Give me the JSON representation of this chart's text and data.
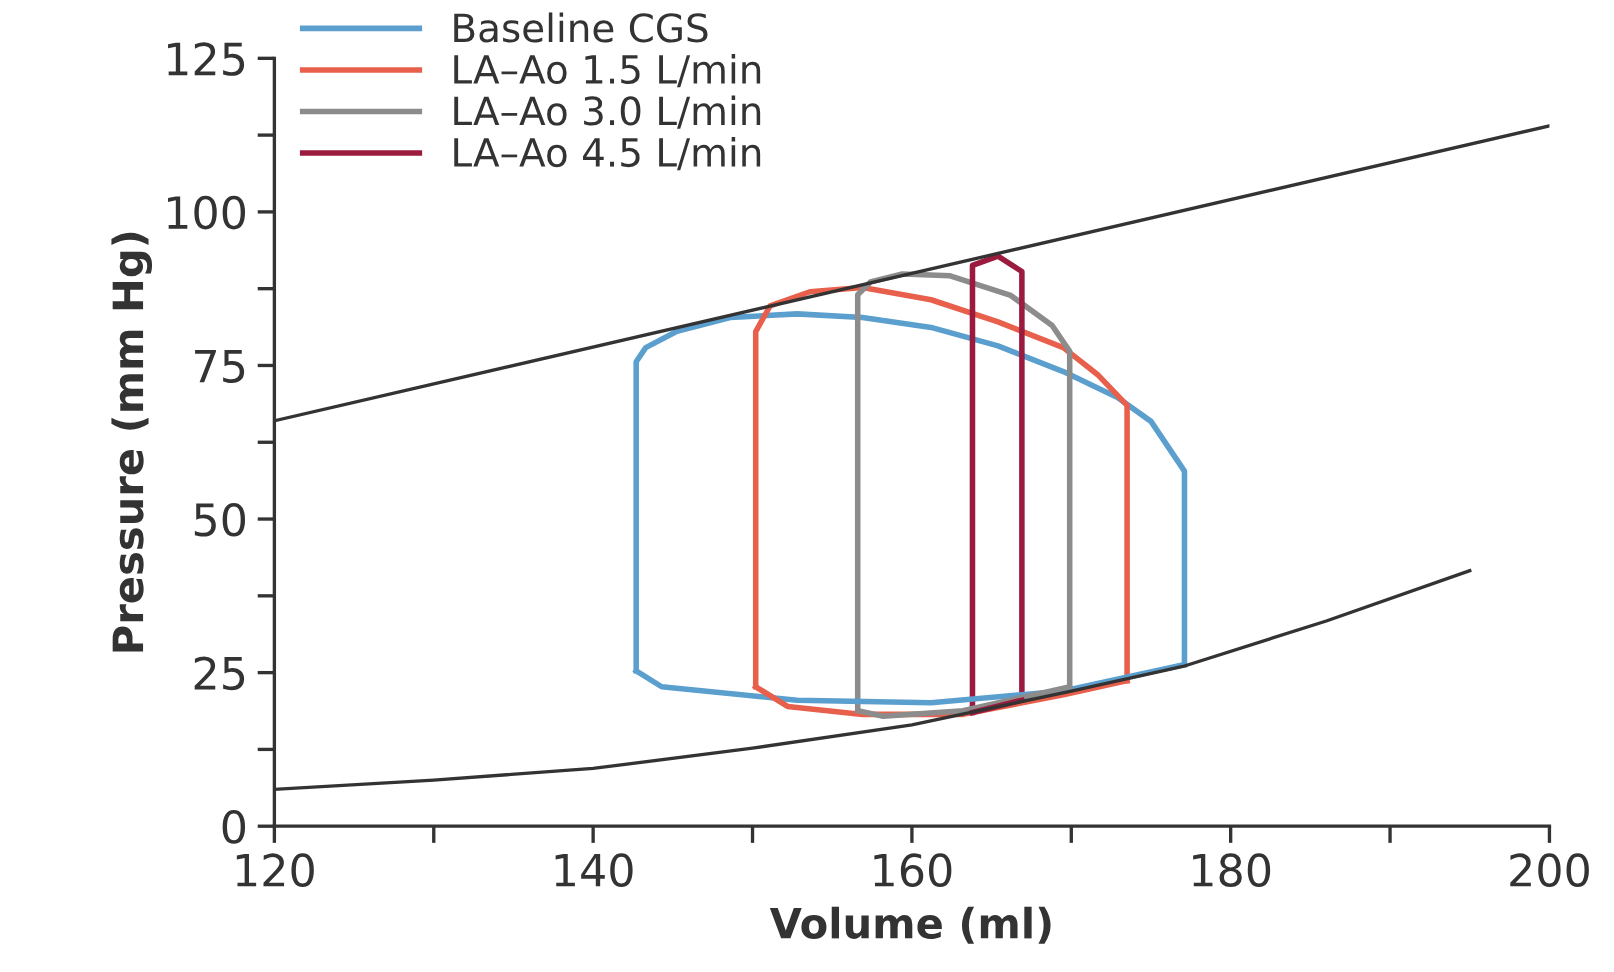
{
  "chart_data": {
    "type": "line",
    "xlabel": "Volume (ml)",
    "ylabel": "Pressure (mm Hg)",
    "xlim": [
      120,
      200
    ],
    "ylim": [
      0,
      125
    ],
    "xticks": [
      120,
      {
        "value": 130,
        "label": null
      },
      140,
      {
        "value": 150,
        "label": null
      },
      160,
      {
        "value": 170,
        "label": null
      },
      180,
      {
        "value": 190,
        "label": null
      },
      200
    ],
    "yticks": [
      0,
      {
        "value": 12.5,
        "label": null
      },
      25,
      {
        "value": 37.5,
        "label": null
      },
      50,
      {
        "value": 62.5,
        "label": null
      },
      75,
      {
        "value": 87.5,
        "label": null
      },
      100,
      {
        "value": 112.5,
        "label": null
      },
      125
    ],
    "grid": false,
    "legend": "top left",
    "marker": "none",
    "line_style": "solid",
    "series": [
      {
        "name": "Baseline CGS",
        "color": "#5b9fcf",
        "x": [
          142.7,
          142.7,
          143.3,
          145.2,
          148.6,
          152.8,
          156.9,
          161.2,
          165.4,
          169.5,
          172.9,
          175,
          177.1,
          177.1
        ],
        "values": [
          25.3,
          75.6,
          77.9,
          80.5,
          82.8,
          83.4,
          82.8,
          81.2,
          78.2,
          74,
          69.8,
          65.9,
          57.8,
          26.3
        ]
      },
      {
        "name": "LA–Ao 1.5 L/min",
        "color": "#e8604c",
        "x": [
          150.2,
          150.2,
          151.1,
          153.6,
          156.9,
          161.2,
          165.4,
          169.5,
          171.7,
          173.5,
          173.5
        ],
        "values": [
          22.7,
          80.5,
          84.7,
          87,
          87.7,
          85.7,
          82.1,
          77.9,
          73.4,
          68.5,
          23.7
        ]
      },
      {
        "name": "LA–Ao 3.0 L/min",
        "color": "#8c8c8c",
        "x": [
          156.6,
          156.6,
          157.4,
          159.4,
          162.4,
          166.2,
          168.8,
          169.9,
          169.9
        ],
        "values": [
          18.8,
          86.5,
          88.6,
          89.9,
          89.6,
          86.4,
          81.5,
          77.3,
          22.7
        ]
      },
      {
        "name": "LA–Ao 4.5 L/min",
        "color": "#9b1b3e",
        "x": [
          163.8,
          163.8,
          165.4,
          166.9,
          166.9
        ],
        "values": [
          18.5,
          91.3,
          92.8,
          90.3,
          20.5
        ]
      },
      {
        "color": "#5b9fcf",
        "x": [
          142.7,
          144.3,
          152.8,
          161.2,
          169.5,
          177.1
        ],
        "values": [
          25.3,
          22.7,
          20.5,
          20.1,
          22,
          26.3
        ]
      },
      {
        "color": "#e8604c",
        "x": [
          150.2,
          152.2,
          156.9,
          163.2,
          169.5,
          173.5
        ],
        "values": [
          22.7,
          19.5,
          18.2,
          18.2,
          21.4,
          23.7
        ]
      },
      {
        "color": "#8c8c8c",
        "x": [
          156.6,
          158.2,
          163.2,
          169.9
        ],
        "values": [
          18.8,
          17.9,
          18.8,
          22.7
        ]
      },
      {
        "color": "#9b1b3e",
        "x": [
          163.8,
          166.9
        ],
        "values": [
          18.5,
          20.5
        ]
      },
      {
        "color": "#333333",
        "x": [
          120,
          200
        ],
        "values": [
          66,
          114
        ]
      },
      {
        "color": "#333333",
        "x": [
          120,
          130,
          140,
          150,
          160,
          166,
          170,
          177,
          186,
          195
        ],
        "values": [
          6,
          7.5,
          9.4,
          12.7,
          16.5,
          19.8,
          22,
          26,
          33.4,
          41.6
        ]
      }
    ]
  }
}
